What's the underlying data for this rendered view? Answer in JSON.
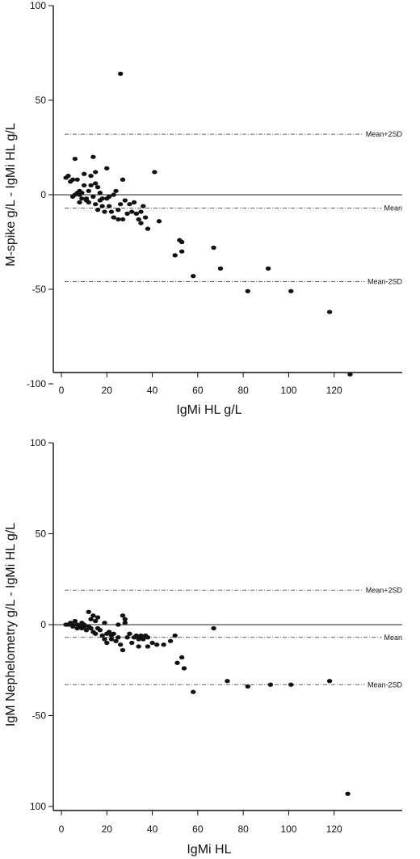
{
  "chart_data": [
    {
      "type": "scatter",
      "title": "",
      "xlabel": "IgMi HL g/L",
      "ylabel": "M-spike g/L - IgMi HL g/L",
      "xlim": [
        0,
        140
      ],
      "ylim": [
        -100,
        100
      ],
      "xticks": [
        "0",
        "20",
        "40",
        "60",
        "80",
        "100",
        "120"
      ],
      "yticks": [
        "100",
        "50",
        "0",
        "-50",
        "-100"
      ],
      "grid": false,
      "reference_lines": [
        {
          "label": "Mean+2SD",
          "value": 32,
          "style": "dash-dot"
        },
        {
          "label": "Mean",
          "value": -7,
          "style": "dash-dot"
        },
        {
          "label": "Mean-2SD",
          "value": -46,
          "style": "dash-dot"
        },
        {
          "label": "",
          "value": 0,
          "style": "solid"
        }
      ],
      "series": [
        {
          "x": [
            2,
            3,
            4,
            5,
            5,
            6,
            6,
            7,
            7,
            8,
            8,
            8,
            9,
            9,
            10,
            10,
            11,
            11,
            12,
            12,
            13,
            13,
            14,
            14,
            15,
            15,
            15,
            16,
            16,
            17,
            17,
            18,
            18,
            19,
            20,
            20,
            21,
            21,
            22,
            23,
            23,
            24,
            25,
            25,
            26,
            27,
            27,
            28,
            29,
            30,
            31,
            32,
            33,
            34,
            35,
            35,
            36,
            37,
            38,
            26,
            41,
            43,
            50,
            52,
            53,
            53,
            58,
            67,
            70,
            82,
            91,
            101,
            118,
            127
          ],
          "y": [
            9,
            10,
            7,
            8,
            -1,
            0,
            19,
            1,
            8,
            2,
            -4,
            0,
            -2,
            1,
            11,
            5,
            -2,
            -3,
            2,
            -4,
            10,
            5,
            -1,
            20,
            12,
            6,
            -5,
            -8,
            4,
            1,
            -3,
            -2,
            -6,
            -9,
            14,
            -2,
            -1,
            -6,
            -9,
            0,
            -12,
            2,
            -8,
            -13,
            -5,
            8,
            -13,
            -3,
            -10,
            -5,
            -9,
            -4,
            -10,
            -13,
            -15,
            -9,
            -6,
            -12,
            -18,
            64,
            12,
            -14,
            -32,
            -24,
            -25,
            -30,
            -43,
            -28,
            -39,
            -51,
            -39,
            -51,
            -62,
            -95
          ]
        }
      ]
    },
    {
      "type": "scatter",
      "title": "",
      "xlabel": "IgMi HL",
      "ylabel": "IgM Nephelometry g/L - IgMi HL g/L",
      "xlim": [
        0,
        140
      ],
      "ylim": [
        -100,
        100
      ],
      "xticks": [
        "0",
        "20",
        "40",
        "60",
        "80",
        "100",
        "120"
      ],
      "yticks": [
        "100",
        "50",
        "0",
        "-50",
        "100"
      ],
      "grid": false,
      "reference_lines": [
        {
          "label": "Mean+2SD",
          "value": 19,
          "style": "dash-dot"
        },
        {
          "label": "Mean",
          "value": -7,
          "style": "dash-dot"
        },
        {
          "label": "Mean-2SD",
          "value": -33,
          "style": "dash-dot"
        },
        {
          "label": "",
          "value": 0,
          "style": "solid"
        }
      ],
      "series": [
        {
          "x": [
            2,
            3,
            4,
            5,
            5,
            6,
            7,
            7,
            8,
            9,
            9,
            10,
            10,
            11,
            12,
            12,
            13,
            13,
            14,
            14,
            15,
            15,
            16,
            16,
            17,
            18,
            19,
            19,
            20,
            20,
            21,
            22,
            22,
            23,
            24,
            25,
            25,
            26,
            27,
            27,
            28,
            28,
            29,
            30,
            31,
            32,
            33,
            34,
            34,
            35,
            35,
            36,
            37,
            38,
            38,
            40,
            42,
            45,
            48,
            50,
            51,
            53,
            54,
            58,
            67,
            73,
            82,
            92,
            101,
            118,
            126
          ],
          "y": [
            0,
            0,
            1,
            -1,
            0,
            2,
            0,
            -2,
            -1,
            1,
            -2,
            -1,
            0,
            -3,
            -1,
            7,
            -2,
            3,
            -4,
            5,
            -5,
            2,
            -2,
            4,
            -3,
            -6,
            1,
            -8,
            -5,
            -10,
            -4,
            -6,
            -8,
            -5,
            -9,
            -7,
            0,
            -11,
            5,
            -14,
            1,
            3,
            -7,
            -5,
            -10,
            -7,
            -6,
            -8,
            -12,
            -6,
            -7,
            -8,
            -6,
            -7,
            -12,
            -10,
            -11,
            -11,
            -9,
            -6,
            -21,
            -18,
            -24,
            -37,
            -2,
            -31,
            -34,
            -33,
            -33,
            -31,
            -93
          ]
        }
      ]
    }
  ]
}
